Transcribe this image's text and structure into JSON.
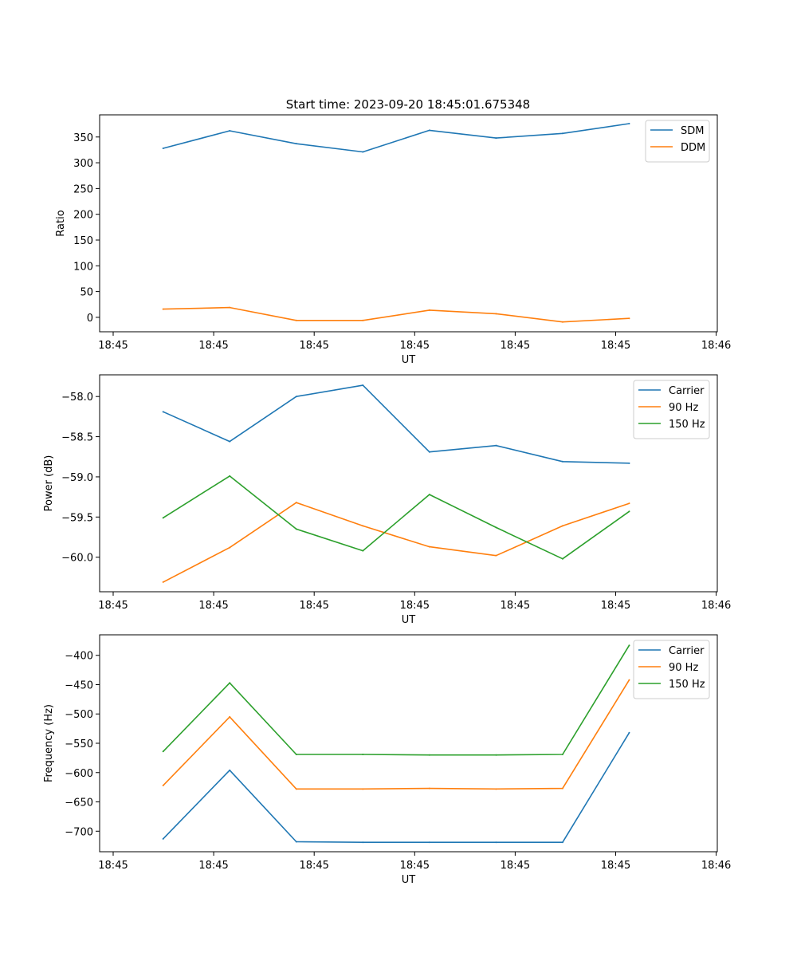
{
  "figure_title": "Start time: 2023-09-20 18:45:01.675348",
  "colors": {
    "blue": "#1f77b4",
    "orange": "#ff7f0e",
    "green": "#2ca02c"
  },
  "chart_data": [
    {
      "type": "line",
      "xlabel": "UT",
      "ylabel": "Ratio",
      "x_tick_labels": [
        "18:45",
        "18:45",
        "18:45",
        "18:45",
        "18:45",
        "18:45",
        "18:46"
      ],
      "xlim": [
        -0.13,
        5.9
      ],
      "ylim": [
        -28,
        393
      ],
      "y_ticks": [
        0,
        50,
        100,
        150,
        200,
        250,
        300,
        350
      ],
      "y_tick_labels": [
        "0",
        "50",
        "100",
        "150",
        "200",
        "250",
        "300",
        "350"
      ],
      "x": [
        0.49,
        1.14,
        1.79,
        2.44,
        3.09,
        3.74,
        4.39,
        5.04
      ],
      "legend_position": "upper-right",
      "series": [
        {
          "name": "SDM",
          "color": "#1f77b4",
          "values": [
            328,
            362,
            337,
            321,
            363,
            348,
            357,
            376
          ]
        },
        {
          "name": "DDM",
          "color": "#ff7f0e",
          "values": [
            16,
            19,
            -6,
            -6,
            14,
            7,
            -9,
            -2
          ]
        }
      ]
    },
    {
      "type": "line",
      "xlabel": "UT",
      "ylabel": "Power (dB)",
      "x_tick_labels": [
        "18:45",
        "18:45",
        "18:45",
        "18:45",
        "18:45",
        "18:45",
        "18:46"
      ],
      "xlim": [
        -0.13,
        5.9
      ],
      "ylim": [
        -60.43,
        -57.73
      ],
      "y_ticks": [
        -60.0,
        -59.5,
        -59.0,
        -58.5,
        -58.0
      ],
      "y_tick_labels": [
        "−60.0",
        "−59.5",
        "−59.0",
        "−58.5",
        "−58.0"
      ],
      "x": [
        0.49,
        1.14,
        1.79,
        2.44,
        3.09,
        3.74,
        4.39,
        5.04
      ],
      "legend_position": "upper-right",
      "series": [
        {
          "name": "Carrier",
          "color": "#1f77b4",
          "values": [
            -58.19,
            -58.56,
            -58.0,
            -57.86,
            -58.69,
            -58.61,
            -58.81,
            -58.83
          ]
        },
        {
          "name": "90 Hz",
          "color": "#ff7f0e",
          "values": [
            -60.31,
            -59.88,
            -59.32,
            -59.61,
            -59.87,
            -59.98,
            -59.61,
            -59.33
          ]
        },
        {
          "name": "150 Hz",
          "color": "#2ca02c",
          "values": [
            -59.51,
            -58.99,
            -59.65,
            -59.92,
            -59.22,
            -59.63,
            -60.02,
            -59.43
          ]
        }
      ]
    },
    {
      "type": "line",
      "xlabel": "UT",
      "ylabel": "Frequency (Hz)",
      "x_tick_labels": [
        "18:45",
        "18:45",
        "18:45",
        "18:45",
        "18:45",
        "18:45",
        "18:46"
      ],
      "xlim": [
        -0.13,
        5.9
      ],
      "ylim": [
        -735,
        -365
      ],
      "y_ticks": [
        -700,
        -650,
        -600,
        -550,
        -500,
        -450,
        -400
      ],
      "y_tick_labels": [
        "−700",
        "−650",
        "−600",
        "−550",
        "−500",
        "−450",
        "−400"
      ],
      "x": [
        0.49,
        1.14,
        1.79,
        2.44,
        3.09,
        3.74,
        4.39,
        5.04
      ],
      "legend_position": "upper-right",
      "series": [
        {
          "name": "Carrier",
          "color": "#1f77b4",
          "values": [
            -713,
            -596,
            -718,
            -719,
            -719,
            -719,
            -719,
            -532
          ]
        },
        {
          "name": "90 Hz",
          "color": "#ff7f0e",
          "values": [
            -622,
            -505,
            -628,
            -628,
            -627,
            -628,
            -627,
            -442
          ]
        },
        {
          "name": "150 Hz",
          "color": "#2ca02c",
          "values": [
            -564,
            -447,
            -569,
            -569,
            -570,
            -570,
            -569,
            -383
          ]
        }
      ]
    }
  ]
}
